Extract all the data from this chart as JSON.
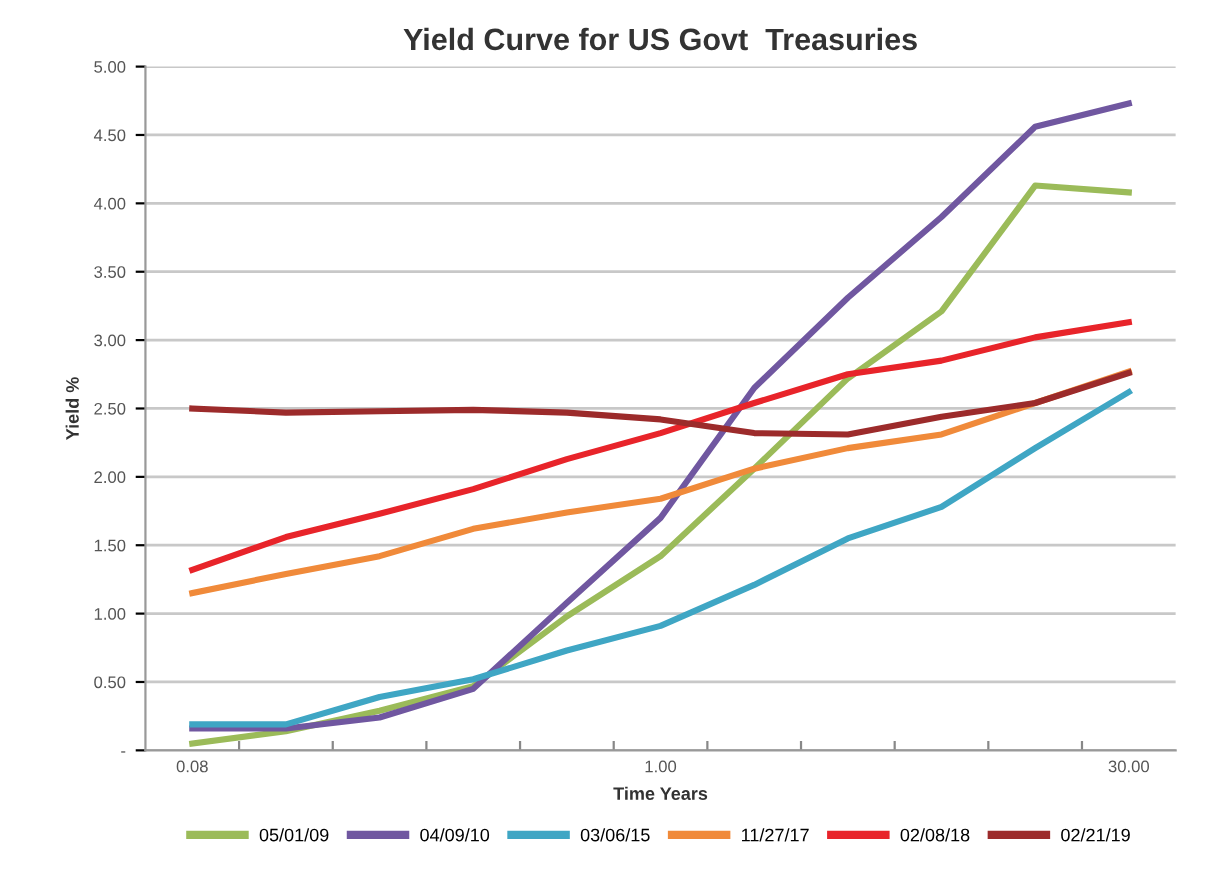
{
  "chart_data": {
    "type": "line",
    "title": "Yield Curve for US Govt  Treasuries",
    "xlabel": "Time Years",
    "ylabel": "Yield %",
    "categories": [
      "0.08",
      null,
      null,
      null,
      null,
      "1.00",
      null,
      null,
      null,
      null,
      "30.00"
    ],
    "series": [
      {
        "name": "05/01/09",
        "color": "#9bbb59",
        "values": [
          0.05,
          0.14,
          0.29,
          0.47,
          0.98,
          1.42,
          2.06,
          2.72,
          3.21,
          4.13,
          4.08
        ]
      },
      {
        "name": "04/09/10",
        "color": "#7057a0",
        "values": [
          0.16,
          0.16,
          0.24,
          0.45,
          1.08,
          1.7,
          2.65,
          3.31,
          3.9,
          4.56,
          4.73
        ]
      },
      {
        "name": "03/06/15",
        "color": "#3fa6c4",
        "values": [
          0.19,
          0.19,
          0.39,
          0.52,
          0.73,
          0.91,
          1.21,
          1.55,
          1.78,
          2.21,
          2.62
        ]
      },
      {
        "name": "11/27/17",
        "color": "#f08a3a",
        "values": [
          1.15,
          1.29,
          1.42,
          1.62,
          1.74,
          1.84,
          2.06,
          2.21,
          2.31,
          2.54,
          2.77
        ]
      },
      {
        "name": "02/08/18",
        "color": "#e8242a",
        "values": [
          1.32,
          1.56,
          1.73,
          1.91,
          2.13,
          2.32,
          2.54,
          2.75,
          2.85,
          3.02,
          3.13
        ]
      },
      {
        "name": "02/21/19",
        "color": "#9c2b2b",
        "values": [
          2.5,
          2.47,
          2.48,
          2.49,
          2.47,
          2.42,
          2.32,
          2.31,
          2.44,
          2.54,
          2.76
        ]
      }
    ],
    "ylim": [
      0,
      5
    ],
    "yticks": [
      {
        "value": 0,
        "label": "-"
      },
      {
        "value": 0.5,
        "label": "0.50"
      },
      {
        "value": 1,
        "label": "1.00"
      },
      {
        "value": 1.5,
        "label": "1.50"
      },
      {
        "value": 2,
        "label": "2.00"
      },
      {
        "value": 2.5,
        "label": "2.50"
      },
      {
        "value": 3,
        "label": "3.00"
      },
      {
        "value": 3.5,
        "label": "3.50"
      },
      {
        "value": 4,
        "label": "4.00"
      },
      {
        "value": 4.5,
        "label": "4.50"
      },
      {
        "value": 5,
        "label": "5.00"
      }
    ],
    "grid": "y",
    "legend": "bottom",
    "marker": "none",
    "line_style": "solid"
  }
}
